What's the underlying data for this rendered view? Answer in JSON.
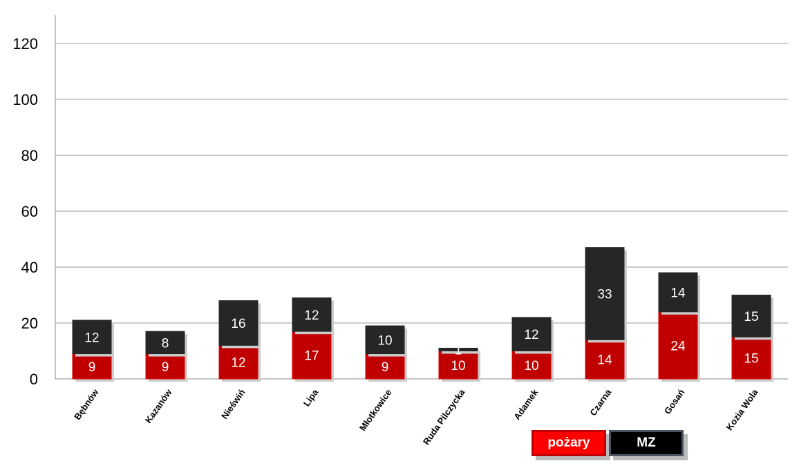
{
  "chart_data": {
    "type": "bar",
    "stacked": true,
    "categories": [
      "Bębnów",
      "Kazanów",
      "Nieświń",
      "Lipa",
      "Młotkowice",
      "Ruda Pilczycka",
      "Adamek",
      "Czarna",
      "Gosań",
      "Kozia Wola"
    ],
    "series": [
      {
        "name": "pożary",
        "color": "#c00000",
        "values": [
          9,
          9,
          12,
          17,
          9,
          10,
          10,
          14,
          24,
          15
        ]
      },
      {
        "name": "MZ",
        "color": "#262626",
        "values": [
          12,
          8,
          16,
          12,
          10,
          1,
          12,
          33,
          14,
          15
        ]
      }
    ],
    "ylim": [
      0,
      120
    ],
    "yticks": [
      0,
      20,
      40,
      60,
      80,
      100,
      120
    ],
    "grid": true,
    "legend": "bottom-right"
  }
}
